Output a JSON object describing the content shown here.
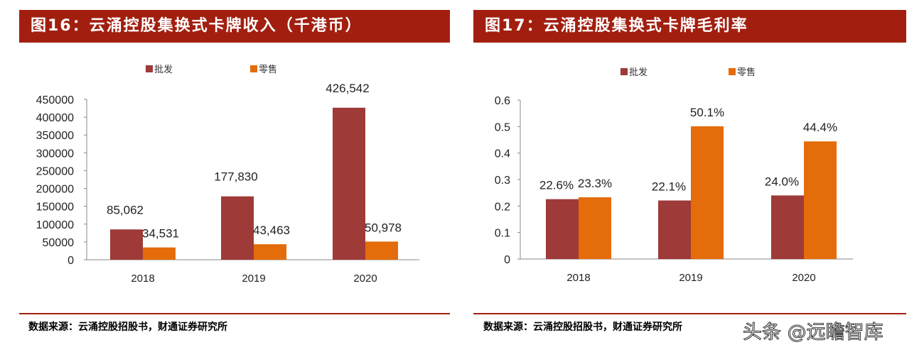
{
  "watermark": "头条 @远瞻智库",
  "chart_data": [
    {
      "type": "bar",
      "title": "图16：云涌控股集换式卡牌收入（千港币）",
      "source": "数据来源：云涌控股招股书，财通证券研究所",
      "categories": [
        "2018",
        "2019",
        "2020"
      ],
      "series": [
        {
          "name": "批发",
          "values": [
            85062,
            177830,
            426542
          ],
          "labels": [
            "85,062",
            "177,830",
            "426,542"
          ],
          "color": "#9e3a38"
        },
        {
          "name": "零售",
          "values": [
            34531,
            43463,
            50978
          ],
          "labels": [
            "34,531",
            "43,463",
            "50,978"
          ],
          "color": "#e46c0a"
        }
      ],
      "ylim": [
        0,
        450000
      ],
      "yticks": [
        "0",
        "50000",
        "100000",
        "150000",
        "200000",
        "250000",
        "300000",
        "350000",
        "400000",
        "450000"
      ],
      "legend": "top",
      "grid": false
    },
    {
      "type": "bar",
      "title": "图17：云涌控股集换式卡牌毛利率",
      "source": "数据来源：云涌控股招股书，财通证券研究所",
      "categories": [
        "2018",
        "2019",
        "2020"
      ],
      "series": [
        {
          "name": "批发",
          "values": [
            0.226,
            0.221,
            0.24
          ],
          "labels": [
            "22.6%",
            "22.1%",
            "24.0%"
          ],
          "color": "#9e3a38"
        },
        {
          "name": "零售",
          "values": [
            0.233,
            0.501,
            0.444
          ],
          "labels": [
            "23.3%",
            "50.1%",
            "44.4%"
          ],
          "color": "#e46c0a"
        }
      ],
      "ylim": [
        0,
        0.6
      ],
      "yticks": [
        "0",
        "0.1",
        "0.2",
        "0.3",
        "0.4",
        "0.5",
        "0.6"
      ],
      "legend": "top",
      "grid": false
    }
  ]
}
